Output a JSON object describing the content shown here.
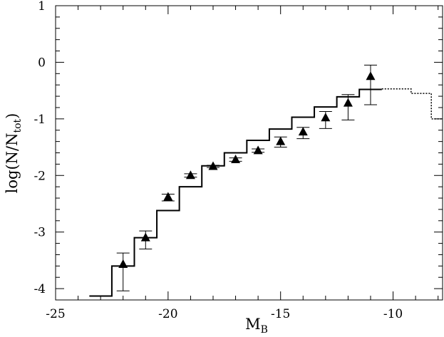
{
  "chart_data": {
    "type": "step-errorbar",
    "xlabel": {
      "main": "M",
      "sub": "B"
    },
    "ylabel": {
      "main": "log(N/N",
      "sub": "tot",
      "end": ")"
    },
    "xlim": [
      -25,
      -7.8
    ],
    "ylim": [
      -4.2,
      1
    ],
    "xticks": [
      -25,
      -20,
      -15,
      -10
    ],
    "yticks": [
      1,
      0,
      -1,
      -2,
      -3,
      -4
    ],
    "xticks_minor": [
      -24,
      -23,
      -22,
      -21,
      -19,
      -18,
      -17,
      -16,
      -14,
      -13,
      -12,
      -11,
      -9,
      -8
    ],
    "yticks_minor": [
      0.8,
      0.6,
      0.4,
      0.2,
      -0.2,
      -0.4,
      -0.6,
      -0.8,
      -1.2,
      -1.4,
      -1.6,
      -1.8,
      -2.2,
      -2.4,
      -2.6,
      -2.8,
      -3.2,
      -3.4,
      -3.6,
      -3.8,
      -4.2
    ],
    "histogram": {
      "color": "#000000",
      "bins": [
        -23.5,
        -22.5,
        -21.5,
        -20.5,
        -19.5,
        -18.5,
        -17.5,
        -16.5,
        -15.5,
        -14.5,
        -13.5,
        -12.5,
        -11.5,
        -10.5
      ],
      "values": [
        -4.13,
        -3.6,
        -3.1,
        -2.62,
        -2.2,
        -1.83,
        -1.6,
        -1.38,
        -1.18,
        -0.97,
        -0.79,
        -0.61,
        -0.48
      ]
    },
    "histogram_dotted": {
      "color": "#000000",
      "bins": [
        -10.5,
        -9.2,
        -8.3,
        -7.8
      ],
      "values": [
        -0.47,
        -0.55,
        -1.0
      ]
    },
    "points": {
      "color": "#000000",
      "x": [
        -22,
        -21,
        -20,
        -19,
        -18,
        -17,
        -16,
        -15,
        -14,
        -13,
        -12,
        -11
      ],
      "values": [
        -3.57,
        -3.1,
        -2.38,
        -2.0,
        -1.84,
        -1.72,
        -1.56,
        -1.4,
        -1.23,
        -0.98,
        -0.72,
        -0.25
      ],
      "err_plus": [
        0.2,
        0.12,
        0.05,
        0.03,
        0.02,
        0.03,
        0.03,
        0.08,
        0.08,
        0.11,
        0.15,
        0.2
      ],
      "err_minus": [
        0.47,
        0.2,
        0.07,
        0.03,
        0.02,
        0.03,
        0.03,
        0.1,
        0.12,
        0.19,
        0.3,
        0.5
      ]
    }
  }
}
